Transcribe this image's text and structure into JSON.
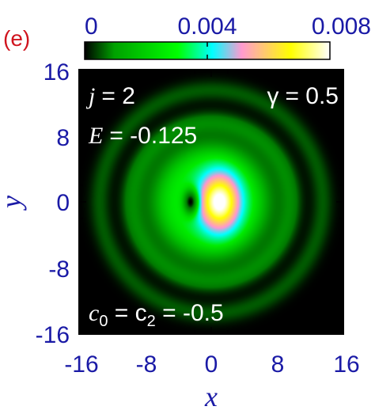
{
  "chart_data": {
    "type": "heatmap",
    "panel_label": "(e)",
    "xlabel": "x",
    "ylabel": "y",
    "xlim": [
      -16,
      16
    ],
    "ylim": [
      -16,
      16
    ],
    "x_ticks": [
      "-16",
      "-8",
      "0",
      "8",
      "16"
    ],
    "y_ticks": [
      "16",
      "8",
      "0",
      "-8",
      "-16"
    ],
    "colorbar": {
      "range": [
        0,
        0.008
      ],
      "ticks": [
        "0",
        "0.004",
        "0.008"
      ],
      "colors": [
        "#000000",
        "#00b000",
        "#00ff00",
        "#00ffff",
        "#ff9ad0",
        "#ffff00",
        "#ffffff"
      ]
    },
    "annotations": {
      "j_label": "j",
      "j_value": "= 2",
      "gamma_label": "γ",
      "gamma_value": "= 0.5",
      "E_label": "E",
      "E_value": "= -0.125",
      "c_label": "c",
      "c0_sub": "0",
      "c_mid": " = c",
      "c2_sub": "2",
      "c_value": " = -0.5"
    },
    "features": {
      "central_peak": {
        "x": 1,
        "y": 0,
        "density": 0.008
      },
      "vortex_hole": {
        "x": -2.5,
        "y": 0
      },
      "rings": [
        {
          "radius": 9.5,
          "density": 0.0012
        },
        {
          "radius": 13.5,
          "density": 0.0006
        }
      ]
    }
  }
}
